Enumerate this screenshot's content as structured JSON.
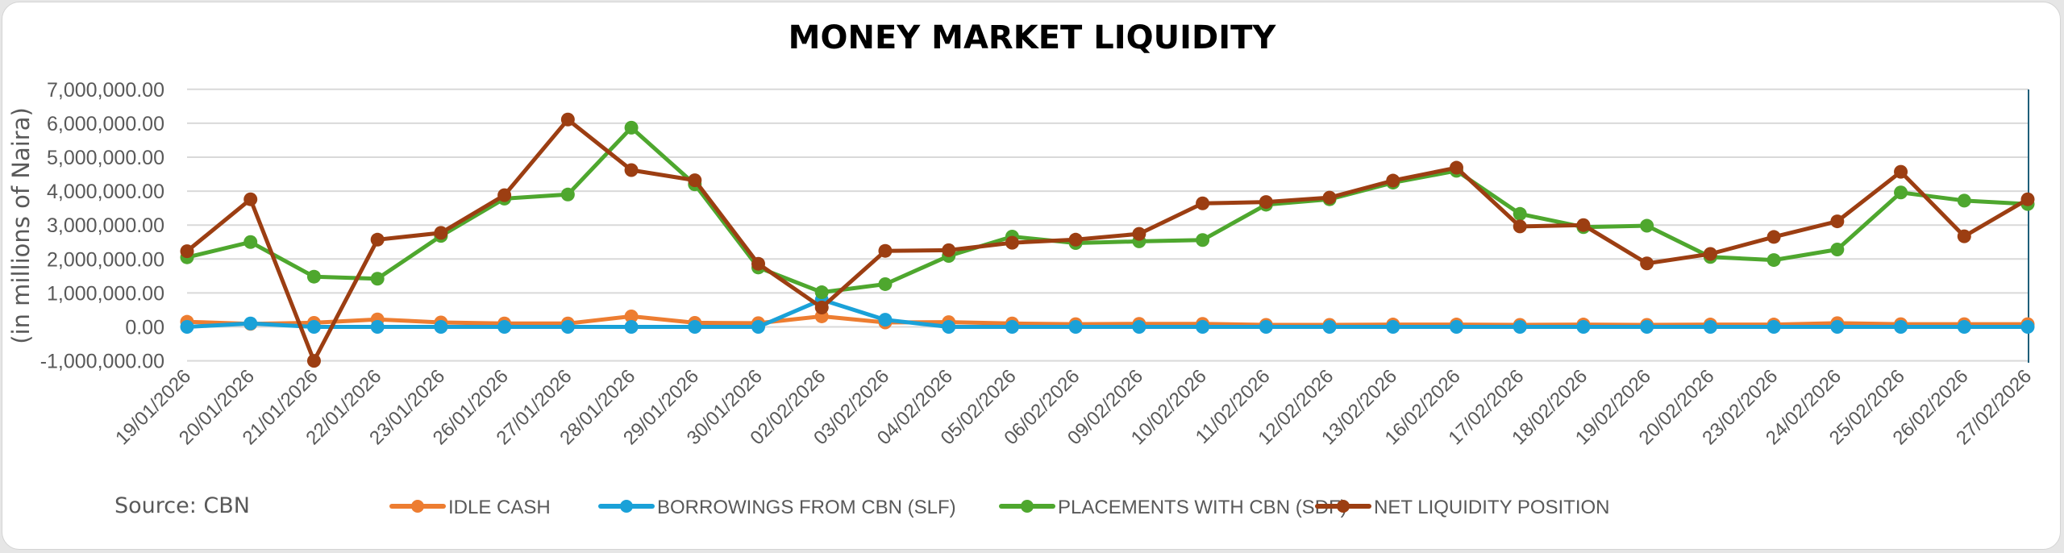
{
  "chart_data": {
    "type": "line",
    "title": "MONEY MARKET LIQUIDITY",
    "xlabel": "",
    "ylabel": "(in millions of Naira)",
    "ylim": [
      -1000000,
      7000000
    ],
    "yticks": [
      7000000,
      6000000,
      5000000,
      4000000,
      3000000,
      2000000,
      1000000,
      0,
      -1000000
    ],
    "ytick_labels": [
      "7,000,000.00",
      "6,000,000.00",
      "5,000,000.00",
      "4,000,000.00",
      "3,000,000.00",
      "2,000,000.00",
      "1,000,000.00",
      "0.00",
      "-1,000,000.00"
    ],
    "grid": true,
    "legend_position": "bottom",
    "categories": [
      "19/01/2026",
      "20/01/2026",
      "21/01/2026",
      "22/01/2026",
      "23/01/2026",
      "26/01/2026",
      "27/01/2026",
      "28/01/2026",
      "29/01/2026",
      "30/01/2026",
      "02/02/2026",
      "03/02/2026",
      "04/02/2026",
      "05/02/2026",
      "06/02/2026",
      "09/02/2026",
      "10/02/2026",
      "11/02/2026",
      "12/02/2026",
      "13/02/2026",
      "16/02/2026",
      "17/02/2026",
      "18/02/2026",
      "19/02/2026",
      "20/02/2026",
      "23/02/2026",
      "24/02/2026",
      "25/02/2026",
      "26/02/2026",
      "27/02/2026"
    ],
    "series": [
      {
        "name": "IDLE CASH",
        "color": "#ED7D31",
        "values": [
          150000,
          90000,
          120000,
          220000,
          130000,
          100000,
          100000,
          310000,
          120000,
          110000,
          310000,
          130000,
          140000,
          100000,
          80000,
          90000,
          90000,
          60000,
          60000,
          70000,
          70000,
          60000,
          70000,
          60000,
          70000,
          70000,
          110000,
          80000,
          80000,
          80000
        ]
      },
      {
        "name": "BORROWINGS FROM CBN (SLF)",
        "color": "#1AA1D8",
        "values": [
          0,
          100000,
          0,
          0,
          0,
          0,
          0,
          0,
          0,
          0,
          800000,
          210000,
          0,
          0,
          0,
          0,
          0,
          0,
          0,
          0,
          0,
          0,
          0,
          0,
          0,
          0,
          0,
          0,
          0,
          0
        ]
      },
      {
        "name": "PLACEMENTS WITH CBN (SDF)",
        "color": "#4EA72E",
        "values": [
          2050000,
          2500000,
          1480000,
          1420000,
          2680000,
          3780000,
          3900000,
          5870000,
          4200000,
          1750000,
          1020000,
          1260000,
          2090000,
          2660000,
          2470000,
          2520000,
          2560000,
          3600000,
          3760000,
          4250000,
          4600000,
          3330000,
          2940000,
          2980000,
          2060000,
          1970000,
          2280000,
          3960000,
          3720000,
          3620000
        ]
      },
      {
        "name": "NET LIQUIDITY POSITION",
        "color": "#9C3E12",
        "values": [
          2230000,
          3760000,
          -1000000,
          2570000,
          2770000,
          3880000,
          6110000,
          4620000,
          4320000,
          1860000,
          570000,
          2240000,
          2260000,
          2480000,
          2570000,
          2740000,
          3640000,
          3680000,
          3810000,
          4310000,
          4690000,
          2960000,
          3000000,
          1870000,
          2150000,
          2650000,
          3110000,
          4570000,
          2670000,
          3760000
        ]
      }
    ],
    "source": "Source: CBN"
  },
  "header": {
    "title": "MONEY MARKET LIQUIDITY"
  },
  "footer": {
    "source": "Source: CBN"
  },
  "axis": {
    "ylabel": "(in millions of Naira)"
  }
}
